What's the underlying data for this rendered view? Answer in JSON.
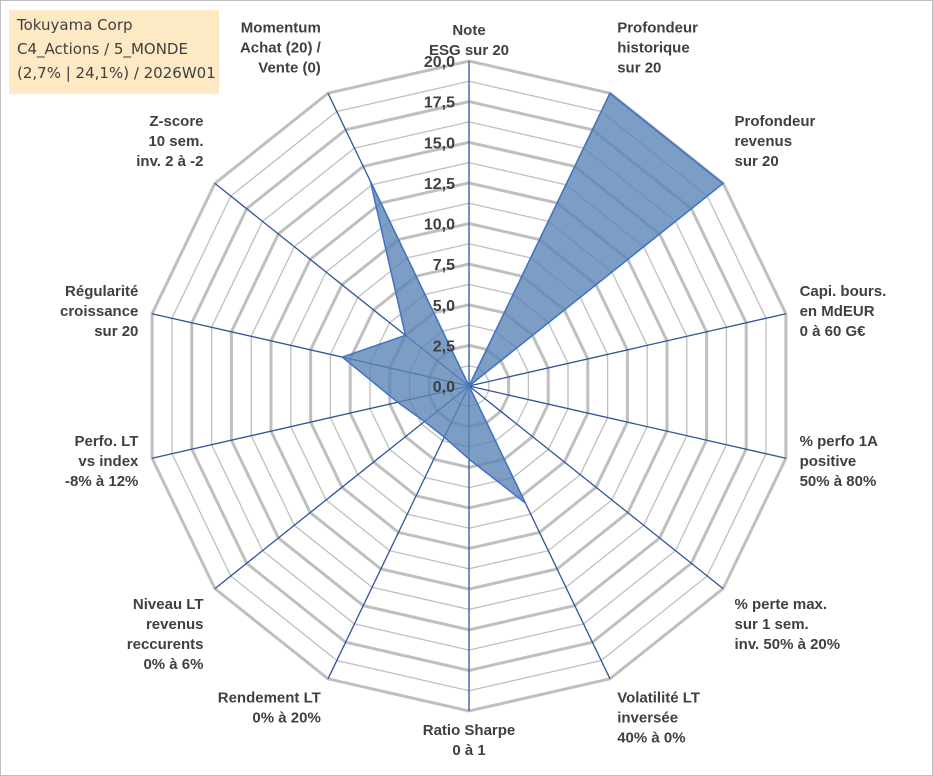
{
  "info": {
    "line1": "Tokuyama Corp",
    "line2": "C4_Actions / 5_MONDE",
    "line3": "(2,7% | 24,1%) / 2026W01"
  },
  "colors": {
    "grid": "#bfbfbf",
    "spoke": "#2f5597",
    "fill": "#5b84b5",
    "fill_opacity": 0.8,
    "outline": "#4472c4",
    "text": "#404040"
  },
  "chart_data": {
    "type": "radar",
    "range": [
      0,
      20
    ],
    "tick_step": 2.5,
    "tick_labels": [
      "0,0",
      "2,5",
      "5,0",
      "7,5",
      "10,0",
      "12,5",
      "15,0",
      "17,5",
      "20,0"
    ],
    "categories": [
      [
        "Note",
        "ESG sur 20"
      ],
      [
        "Profondeur",
        "historique",
        "sur 20"
      ],
      [
        "Profondeur",
        "revenus",
        "sur 20"
      ],
      [
        "Capi. bours.",
        "en MdEUR",
        "0 à 60 G€"
      ],
      [
        "% perfo 1A",
        "positive",
        "50% à 80%"
      ],
      [
        "% perte max.",
        "sur 1 sem.",
        "inv. 50% à 20%"
      ],
      [
        "Volatilité LT",
        "inversée",
        "40% à 0%"
      ],
      [
        "Ratio Sharpe",
        "0 à 1"
      ],
      [
        "Rendement LT",
        "0% à 20%"
      ],
      [
        "Niveau LT",
        "revenus",
        "reccurents",
        "0% à 6%"
      ],
      [
        "Perfo. LT",
        "vs index",
        "-8% à 12%"
      ],
      [
        "Régularité",
        "croissance",
        "sur 20"
      ],
      [
        "Z-score",
        "10 sem.",
        "inv. 2 à -2"
      ],
      [
        "Momentum",
        "Achat (20) /",
        "Vente (0)"
      ]
    ],
    "values": [
      0,
      20,
      20,
      0,
      0,
      0,
      8,
      4.5,
      3.5,
      3.5,
      4.5,
      8,
      5,
      14
    ],
    "grid": true
  }
}
